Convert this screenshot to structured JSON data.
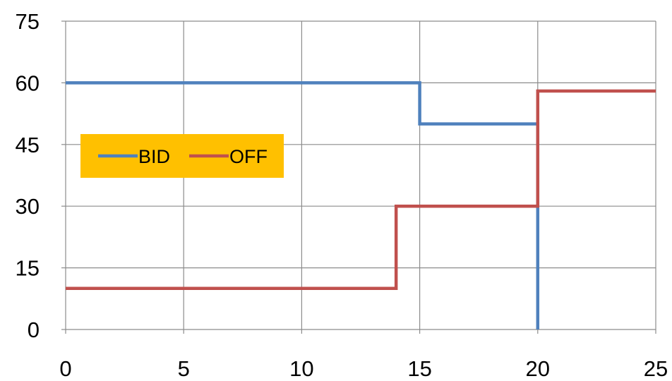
{
  "chart_data": {
    "type": "line",
    "step": true,
    "title": "",
    "xlabel": "",
    "ylabel": "",
    "xlim": [
      0,
      25
    ],
    "ylim": [
      0,
      75
    ],
    "x_ticks": [
      0,
      5,
      10,
      15,
      20,
      25
    ],
    "y_ticks": [
      0,
      15,
      30,
      45,
      60,
      75
    ],
    "grid": true,
    "legend": {
      "placement": "upper-left",
      "background": "#FFC000",
      "entries": [
        "BID",
        "OFF"
      ]
    },
    "series": [
      {
        "name": "BID",
        "color": "#4F81BD",
        "points": [
          [
            0,
            60
          ],
          [
            15,
            60
          ],
          [
            15,
            50
          ],
          [
            20,
            50
          ],
          [
            20,
            0
          ]
        ]
      },
      {
        "name": "OFF",
        "color": "#C0504D",
        "points": [
          [
            0,
            10
          ],
          [
            14,
            10
          ],
          [
            14,
            30
          ],
          [
            20,
            30
          ],
          [
            20,
            58
          ],
          [
            25,
            58
          ]
        ]
      }
    ]
  }
}
